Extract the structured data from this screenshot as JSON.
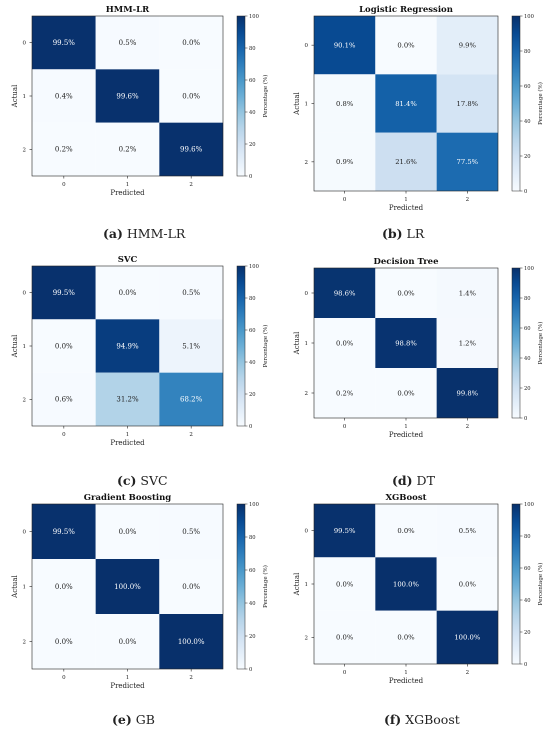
{
  "chart_data": [
    {
      "type": "heatmap",
      "title": "HMM-LR",
      "xlabel": "Predicted",
      "ylabel": "Actual",
      "x_categories": [
        "0",
        "1",
        "2"
      ],
      "y_categories": [
        "0",
        "1",
        "2"
      ],
      "values": [
        [
          99.5,
          0.5,
          0.0
        ],
        [
          0.4,
          99.6,
          0.0
        ],
        [
          0.2,
          0.2,
          99.6
        ]
      ],
      "labels": [
        [
          "99.5%",
          "0.5%",
          "0.0%"
        ],
        [
          "0.4%",
          "99.6%",
          "0.0%"
        ],
        [
          "0.2%",
          "0.2%",
          "99.6%"
        ]
      ],
      "colorbar": {
        "label": "Percentage (%)",
        "range": [
          0,
          100
        ],
        "ticks": [
          "0",
          "20",
          "40",
          "60",
          "80",
          "100"
        ],
        "colormap": "Blues"
      },
      "caption_letter": "(a)",
      "caption_text": " HMM-LR"
    },
    {
      "type": "heatmap",
      "title": "Logistic Regression",
      "xlabel": "Predicted",
      "ylabel": "Actual",
      "x_categories": [
        "0",
        "1",
        "2"
      ],
      "y_categories": [
        "0",
        "1",
        "2"
      ],
      "values": [
        [
          90.1,
          0.0,
          9.9
        ],
        [
          0.8,
          81.4,
          17.8
        ],
        [
          0.9,
          21.6,
          77.5
        ]
      ],
      "labels": [
        [
          "90.1%",
          "0.0%",
          "9.9%"
        ],
        [
          "0.8%",
          "81.4%",
          "17.8%"
        ],
        [
          "0.9%",
          "21.6%",
          "77.5%"
        ]
      ],
      "colorbar": {
        "label": "Percentage (%)",
        "range": [
          0,
          100
        ],
        "ticks": [
          "0",
          "20",
          "40",
          "60",
          "80",
          "100"
        ],
        "colormap": "Blues"
      },
      "caption_letter": "(b)",
      "caption_text": " LR"
    },
    {
      "type": "heatmap",
      "title": "SVC",
      "xlabel": "Predicted",
      "ylabel": "Actual",
      "x_categories": [
        "0",
        "1",
        "2"
      ],
      "y_categories": [
        "0",
        "1",
        "2"
      ],
      "values": [
        [
          99.5,
          0.0,
          0.5
        ],
        [
          0.0,
          94.9,
          5.1
        ],
        [
          0.6,
          31.2,
          68.2
        ]
      ],
      "labels": [
        [
          "99.5%",
          "0.0%",
          "0.5%"
        ],
        [
          "0.0%",
          "94.9%",
          "5.1%"
        ],
        [
          "0.6%",
          "31.2%",
          "68.2%"
        ]
      ],
      "colorbar": {
        "label": "Percentage (%)",
        "range": [
          0,
          100
        ],
        "ticks": [
          "0",
          "20",
          "40",
          "60",
          "80",
          "100"
        ],
        "colormap": "Blues"
      },
      "caption_letter": "(c)",
      "caption_text": " SVC"
    },
    {
      "type": "heatmap",
      "title": "Decision Tree",
      "xlabel": "Predicted",
      "ylabel": "Actual",
      "x_categories": [
        "0",
        "1",
        "2"
      ],
      "y_categories": [
        "0",
        "1",
        "2"
      ],
      "values": [
        [
          98.6,
          0.0,
          1.4
        ],
        [
          0.0,
          98.8,
          1.2
        ],
        [
          0.2,
          0.0,
          99.8
        ]
      ],
      "labels": [
        [
          "98.6%",
          "0.0%",
          "1.4%"
        ],
        [
          "0.0%",
          "98.8%",
          "1.2%"
        ],
        [
          "0.2%",
          "0.0%",
          "99.8%"
        ]
      ],
      "colorbar": {
        "label": "Percentage (%)",
        "range": [
          0,
          100
        ],
        "ticks": [
          "0",
          "20",
          "40",
          "60",
          "80",
          "100"
        ],
        "colormap": "Blues"
      },
      "caption_letter": "(d)",
      "caption_text": " DT"
    },
    {
      "type": "heatmap",
      "title": "Gradient Boosting",
      "xlabel": "Predicted",
      "ylabel": "Actual",
      "x_categories": [
        "0",
        "1",
        "2"
      ],
      "y_categories": [
        "0",
        "1",
        "2"
      ],
      "values": [
        [
          99.5,
          0.0,
          0.5
        ],
        [
          0.0,
          100.0,
          0.0
        ],
        [
          0.0,
          0.0,
          100.0
        ]
      ],
      "labels": [
        [
          "99.5%",
          "0.0%",
          "0.5%"
        ],
        [
          "0.0%",
          "100.0%",
          "0.0%"
        ],
        [
          "0.0%",
          "0.0%",
          "100.0%"
        ]
      ],
      "colorbar": {
        "label": "Percentage (%)",
        "range": [
          0,
          100
        ],
        "ticks": [
          "0",
          "20",
          "40",
          "60",
          "80",
          "100"
        ],
        "colormap": "Blues"
      },
      "caption_letter": "(e)",
      "caption_text": " GB"
    },
    {
      "type": "heatmap",
      "title": "XGBoost",
      "xlabel": "Predicted",
      "ylabel": "Actual",
      "x_categories": [
        "0",
        "1",
        "2"
      ],
      "y_categories": [
        "0",
        "1",
        "2"
      ],
      "values": [
        [
          99.5,
          0.0,
          0.5
        ],
        [
          0.0,
          100.0,
          0.0
        ],
        [
          0.0,
          0.0,
          100.0
        ]
      ],
      "labels": [
        [
          "99.5%",
          "0.0%",
          "0.5%"
        ],
        [
          "0.0%",
          "100.0%",
          "0.0%"
        ],
        [
          "0.0%",
          "0.0%",
          "100.0%"
        ]
      ],
      "colorbar": {
        "label": "Percentage (%)",
        "range": [
          0,
          100
        ],
        "ticks": [
          "0",
          "20",
          "40",
          "60",
          "80",
          "100"
        ],
        "colormap": "Blues"
      },
      "caption_letter": "(f)",
      "caption_text": " XGBoost"
    }
  ]
}
